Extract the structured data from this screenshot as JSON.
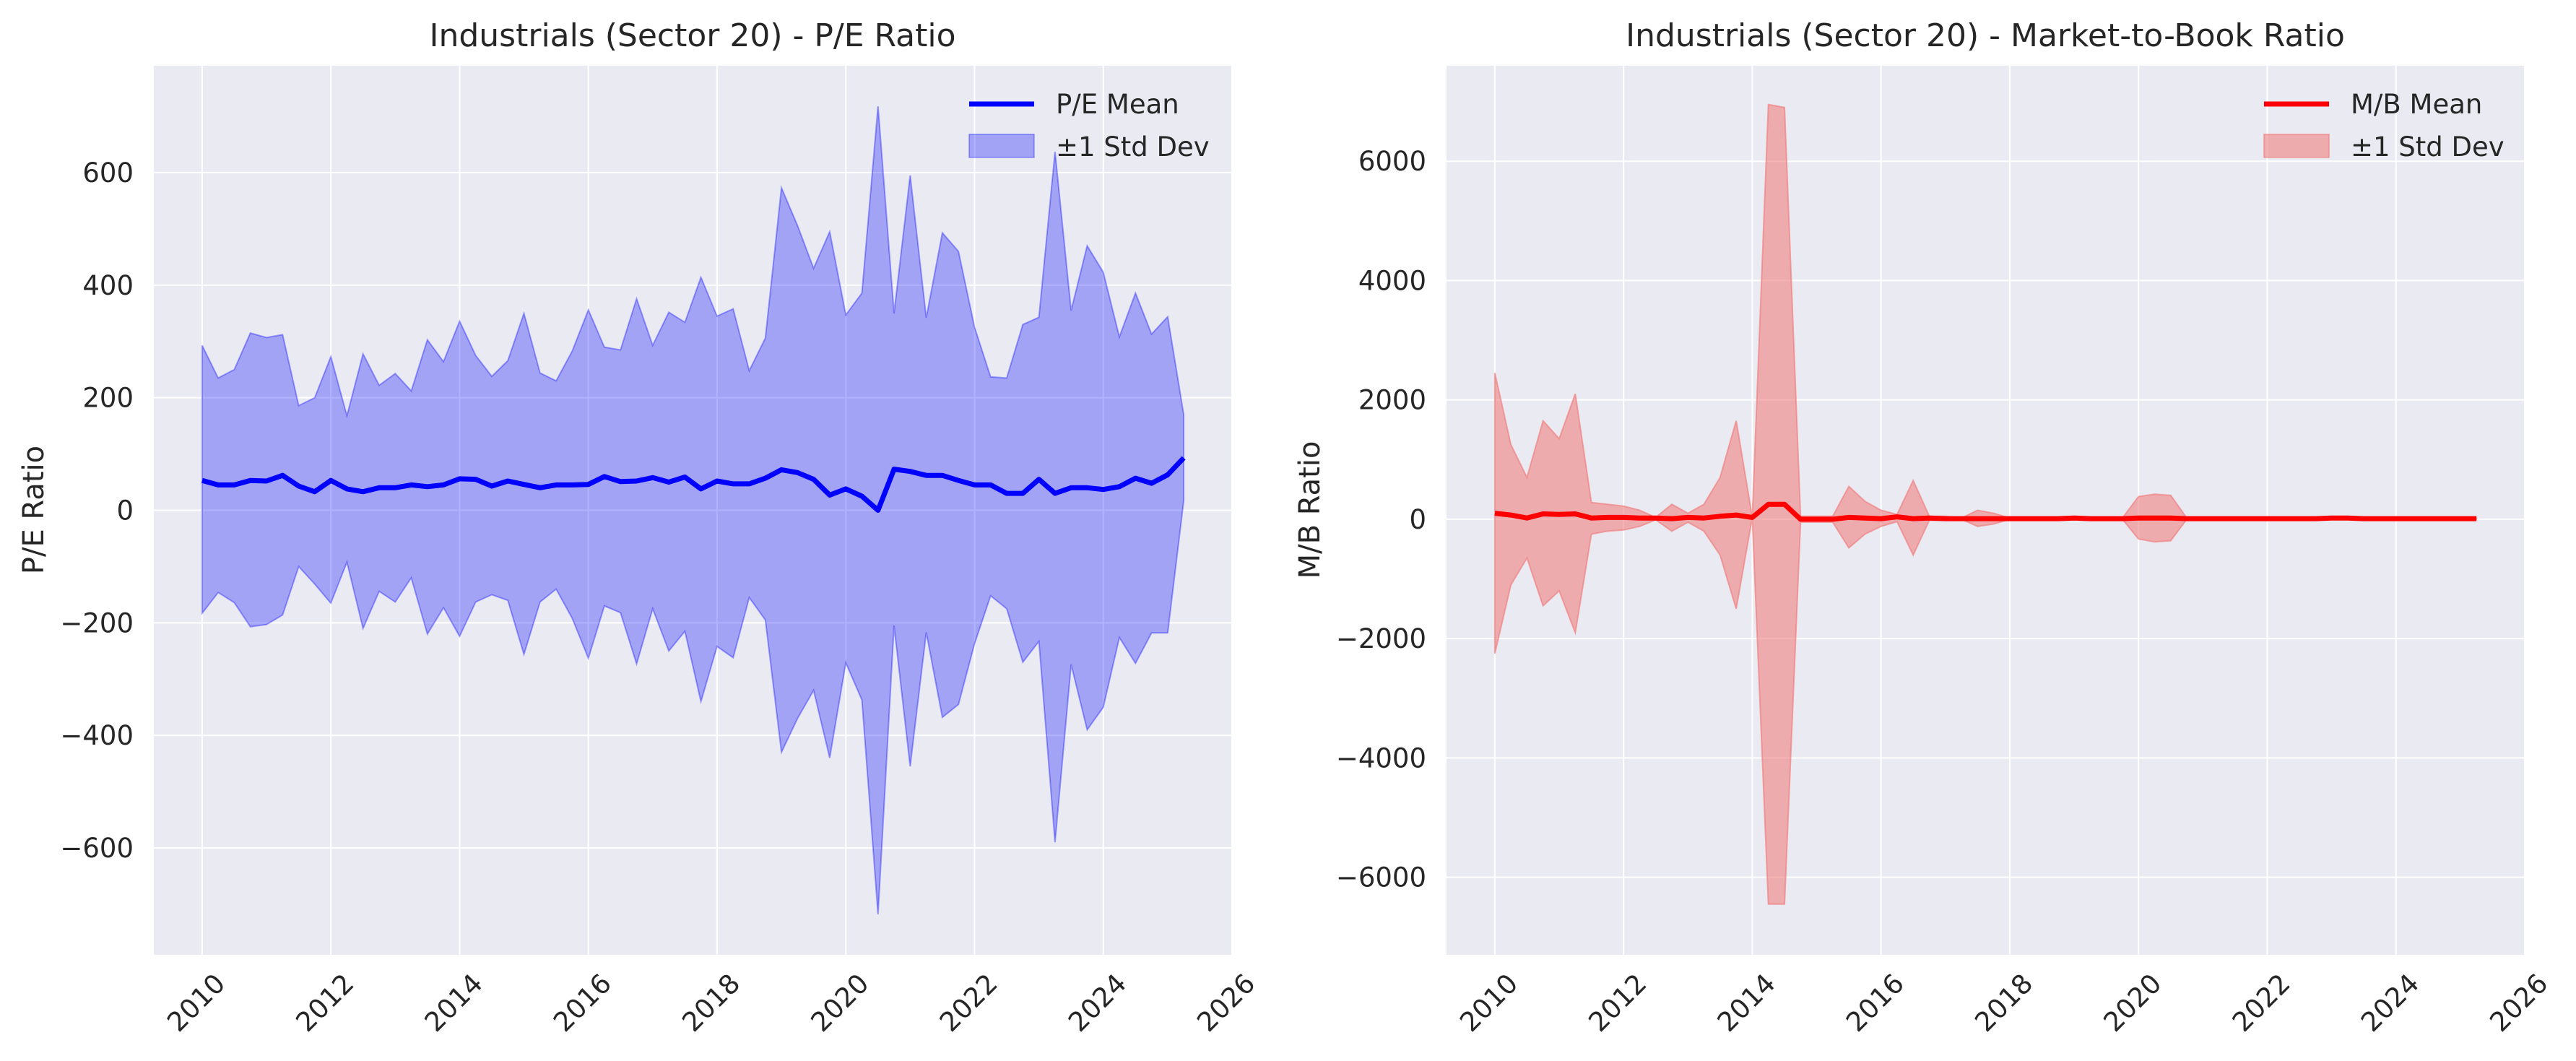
{
  "chart_data": [
    {
      "type": "line",
      "title": "Industrials (Sector 20) - P/E Ratio",
      "xlabel": "",
      "ylabel": "P/E Ratio",
      "xlim": [
        2009.25,
        2026.0
      ],
      "ylim": [
        -790,
        790
      ],
      "xticks": [
        "2010",
        "2012",
        "2014",
        "2016",
        "2018",
        "2020",
        "2022",
        "2024",
        "2026"
      ],
      "yticks": [
        "−600",
        "−400",
        "−200",
        "0",
        "200",
        "400",
        "600"
      ],
      "ytick_values": [
        -600,
        -400,
        -200,
        0,
        200,
        400,
        600
      ],
      "grid": true,
      "legend_position": "top-right",
      "colors": {
        "line": "#0000ff",
        "band": "#0000ff",
        "background": "#eaeaf2"
      },
      "series": [
        {
          "name": "P/E Mean",
          "x": [
            2010.0,
            2010.25,
            2010.5,
            2010.75,
            2011.0,
            2011.25,
            2011.5,
            2011.75,
            2012.0,
            2012.25,
            2012.5,
            2012.75,
            2013.0,
            2013.25,
            2013.5,
            2013.75,
            2014.0,
            2014.25,
            2014.5,
            2014.75,
            2015.0,
            2015.25,
            2015.5,
            2015.75,
            2016.0,
            2016.25,
            2016.5,
            2016.75,
            2017.0,
            2017.25,
            2017.5,
            2017.75,
            2018.0,
            2018.25,
            2018.5,
            2018.75,
            2019.0,
            2019.25,
            2019.5,
            2019.75,
            2020.0,
            2020.25,
            2020.5,
            2020.75,
            2021.0,
            2021.25,
            2021.5,
            2021.75,
            2022.0,
            2022.25,
            2022.5,
            2022.75,
            2023.0,
            2023.25,
            2023.5,
            2023.75,
            2024.0,
            2024.25,
            2024.5,
            2024.75,
            2025.0,
            2025.25
          ],
          "mean": [
            53,
            45,
            45,
            53,
            52,
            62,
            43,
            33,
            53,
            38,
            33,
            40,
            40,
            45,
            42,
            45,
            56,
            55,
            43,
            52,
            46,
            40,
            45,
            45,
            46,
            60,
            51,
            52,
            58,
            50,
            59,
            38,
            52,
            47,
            47,
            57,
            72,
            67,
            55,
            27,
            38,
            25,
            0,
            73,
            69,
            62,
            62,
            53,
            45,
            45,
            30,
            30,
            55,
            30,
            40,
            40,
            37,
            42,
            57,
            48,
            63,
            93
          ],
          "upper": [
            293,
            235,
            250,
            315,
            307,
            312,
            186,
            200,
            273,
            168,
            278,
            222,
            243,
            212,
            303,
            264,
            336,
            275,
            238,
            266,
            350,
            244,
            230,
            283,
            356,
            290,
            285,
            376,
            293,
            352,
            334,
            414,
            345,
            358,
            248,
            306,
            573,
            506,
            430,
            495,
            347,
            386,
            718,
            350,
            595,
            342,
            493,
            460,
            325,
            237,
            235,
            330,
            343,
            637,
            355,
            470,
            423,
            308,
            386,
            313,
            344,
            170
          ]
        },
        {
          "name": "±1 Std Dev",
          "lower": [
            -183,
            -146,
            -164,
            -207,
            -203,
            -186,
            -100,
            -131,
            -165,
            -92,
            -210,
            -144,
            -163,
            -120,
            -220,
            -173,
            -224,
            -163,
            -150,
            -160,
            -256,
            -163,
            -140,
            -192,
            -263,
            -170,
            -182,
            -273,
            -175,
            -250,
            -215,
            -340,
            -242,
            -262,
            -155,
            -195,
            -430,
            -370,
            -320,
            -440,
            -271,
            -337,
            -718,
            -205,
            -455,
            -217,
            -368,
            -345,
            -237,
            -152,
            -175,
            -270,
            -233,
            -590,
            -274,
            -390,
            -350,
            -226,
            -272,
            -218,
            -218,
            17
          ]
        }
      ]
    },
    {
      "type": "line",
      "title": "Industrials (Sector 20) - Market-to-Book Ratio",
      "xlabel": "",
      "ylabel": "M/B Ratio",
      "xlim": [
        2009.25,
        2026.0
      ],
      "ylim": [
        -7300,
        7600
      ],
      "xticks": [
        "2010",
        "2012",
        "2014",
        "2016",
        "2018",
        "2020",
        "2022",
        "2024",
        "2026"
      ],
      "yticks": [
        "−6000",
        "−4000",
        "−2000",
        "0",
        "2000",
        "4000",
        "6000"
      ],
      "ytick_values": [
        -6000,
        -4000,
        -2000,
        0,
        2000,
        4000,
        6000
      ],
      "grid": true,
      "legend_position": "top-right",
      "colors": {
        "line": "#ff0000",
        "band": "#f08080",
        "background": "#eaeaf2"
      },
      "series": [
        {
          "name": "M/B Mean",
          "x": [
            2010.0,
            2010.25,
            2010.5,
            2010.75,
            2011.0,
            2011.25,
            2011.5,
            2011.75,
            2012.0,
            2012.25,
            2012.5,
            2012.75,
            2013.0,
            2013.25,
            2013.5,
            2013.75,
            2014.0,
            2014.25,
            2014.5,
            2014.75,
            2015.0,
            2015.25,
            2015.5,
            2015.75,
            2016.0,
            2016.25,
            2016.5,
            2016.75,
            2017.0,
            2017.25,
            2017.5,
            2017.75,
            2018.0,
            2018.25,
            2018.5,
            2018.75,
            2019.0,
            2019.25,
            2019.5,
            2019.75,
            2020.0,
            2020.25,
            2020.5,
            2020.75,
            2021.0,
            2021.25,
            2021.5,
            2021.75,
            2022.0,
            2022.25,
            2022.5,
            2022.75,
            2023.0,
            2023.25,
            2023.5,
            2023.75,
            2024.0,
            2024.25,
            2024.5,
            2024.75,
            2025.0,
            2025.25
          ],
          "mean": [
            100,
            70,
            20,
            90,
            80,
            90,
            20,
            30,
            30,
            20,
            20,
            10,
            30,
            20,
            50,
            70,
            30,
            250,
            250,
            0,
            0,
            0,
            30,
            20,
            10,
            40,
            10,
            20,
            10,
            10,
            10,
            10,
            10,
            10,
            10,
            10,
            20,
            10,
            10,
            10,
            20,
            20,
            20,
            10,
            10,
            10,
            10,
            10,
            10,
            10,
            10,
            10,
            20,
            20,
            10,
            10,
            10,
            10,
            10,
            10,
            10,
            10
          ],
          "upper": [
            2450,
            1250,
            700,
            1650,
            1350,
            2100,
            280,
            250,
            220,
            150,
            30,
            250,
            100,
            250,
            700,
            1650,
            30,
            6950,
            6900,
            50,
            50,
            50,
            550,
            300,
            150,
            80,
            650,
            50,
            50,
            20,
            150,
            100,
            20,
            20,
            20,
            20,
            30,
            20,
            20,
            20,
            380,
            420,
            400,
            20,
            20,
            20,
            20,
            20,
            20,
            20,
            20,
            20,
            40,
            40,
            20,
            20,
            20,
            20,
            20,
            20,
            20,
            20
          ],
          "lower": [
            -2250,
            -1100,
            -650,
            -1450,
            -1200,
            -1900,
            -250,
            -200,
            -180,
            -120,
            -10,
            -200,
            -50,
            -200,
            -600,
            -1500,
            30,
            -6450,
            -6450,
            -50,
            -50,
            -50,
            -480,
            -250,
            -120,
            -40,
            -600,
            -20,
            -20,
            0,
            -120,
            -80,
            0,
            0,
            0,
            0,
            10,
            0,
            0,
            0,
            -330,
            -380,
            -360,
            0,
            0,
            0,
            0,
            0,
            0,
            0,
            0,
            0,
            0,
            0,
            0,
            0,
            0,
            0,
            0,
            0,
            0,
            0
          ]
        },
        {
          "name": "±1 Std Dev"
        }
      ]
    }
  ]
}
